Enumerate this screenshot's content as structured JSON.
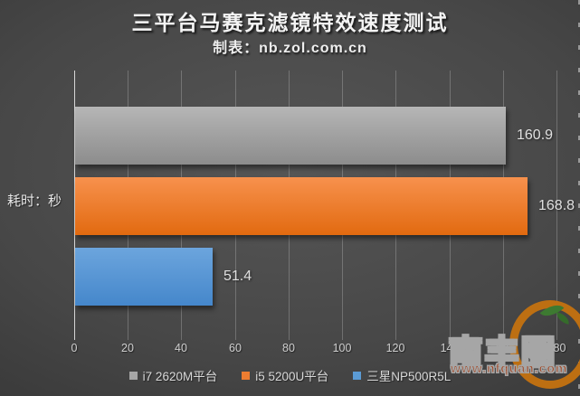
{
  "chart_data": {
    "type": "bar",
    "orientation": "horizontal",
    "title": "三平台马赛克滤镜特效速度测试",
    "subtitle": "制表：nb.zol.com.cn",
    "ylabel": "耗时：秒",
    "xlim": [
      0,
      180
    ],
    "xticks": [
      0,
      20,
      40,
      60,
      80,
      100,
      120,
      140,
      160,
      180
    ],
    "grid": true,
    "legend_position": "bottom",
    "series": [
      {
        "name": "i7 2620M平台",
        "value": 160.9,
        "value_label": "160.9",
        "bar_gradient_top": "#b6b6b6",
        "bar_gradient_bottom": "#8c8c8c",
        "legend_color": "#a6a6a6"
      },
      {
        "name": "i5 5200U平台",
        "value": 168.8,
        "value_label": "168.8",
        "bar_gradient_top": "#f7914d",
        "bar_gradient_bottom": "#e26a10",
        "legend_color": "#ed7d31"
      },
      {
        "name": "三星NP500R5L",
        "value": 51.4,
        "value_label": "51.4",
        "bar_gradient_top": "#6ca5dd",
        "bar_gradient_bottom": "#4587cb",
        "legend_color": "#5b9bd5"
      }
    ]
  },
  "watermark": {
    "name": "南丰圈",
    "url": "www.nfquan.com"
  }
}
